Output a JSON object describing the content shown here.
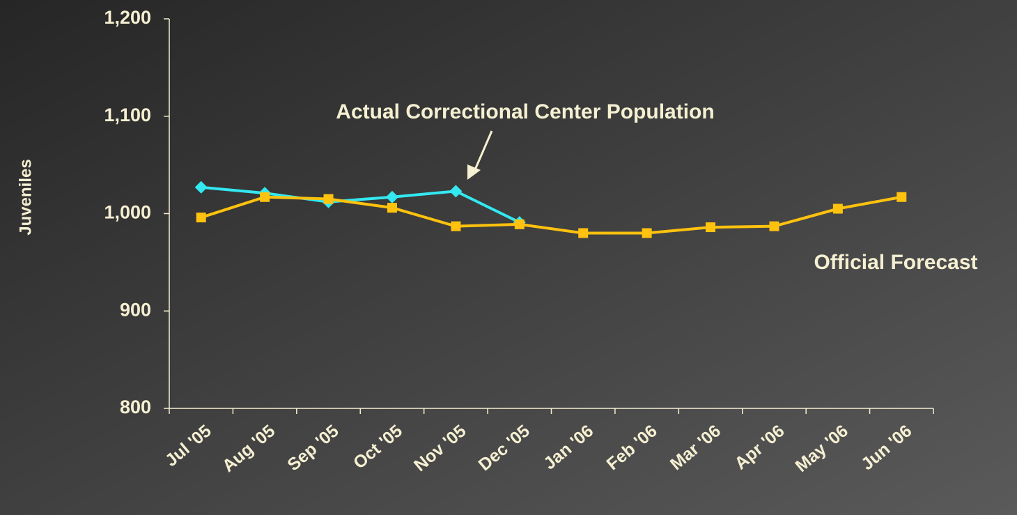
{
  "chart_data": {
    "type": "line",
    "y_label": "Juveniles",
    "categories": [
      "Jul '05",
      "Aug '05",
      "Sep '05",
      "Oct '05",
      "Nov '05",
      "Dec '05",
      "Jan '06",
      "Feb '06",
      "Mar '06",
      "Apr '06",
      "May '06",
      "Jun '06"
    ],
    "series": [
      {
        "name": "Actual Correctional Center Population",
        "color": "#33e8f0",
        "marker": "diamond",
        "values": [
          1027,
          1021,
          1012,
          1017,
          1023,
          991,
          null,
          null,
          null,
          null,
          null,
          null
        ]
      },
      {
        "name": "Official Forecast",
        "color": "#ffc20e",
        "marker": "square",
        "values": [
          996,
          1017,
          1015,
          1006,
          987,
          989,
          980,
          980,
          986,
          987,
          1005,
          1017
        ]
      }
    ],
    "ylim": [
      800,
      1200
    ],
    "yticks": [
      {
        "value": 800,
        "label": "800"
      },
      {
        "value": 900,
        "label": "900"
      },
      {
        "value": 1000,
        "label": "1,000"
      },
      {
        "value": 1100,
        "label": "1,100"
      },
      {
        "value": 1200,
        "label": "1,200"
      }
    ],
    "grid": false
  }
}
